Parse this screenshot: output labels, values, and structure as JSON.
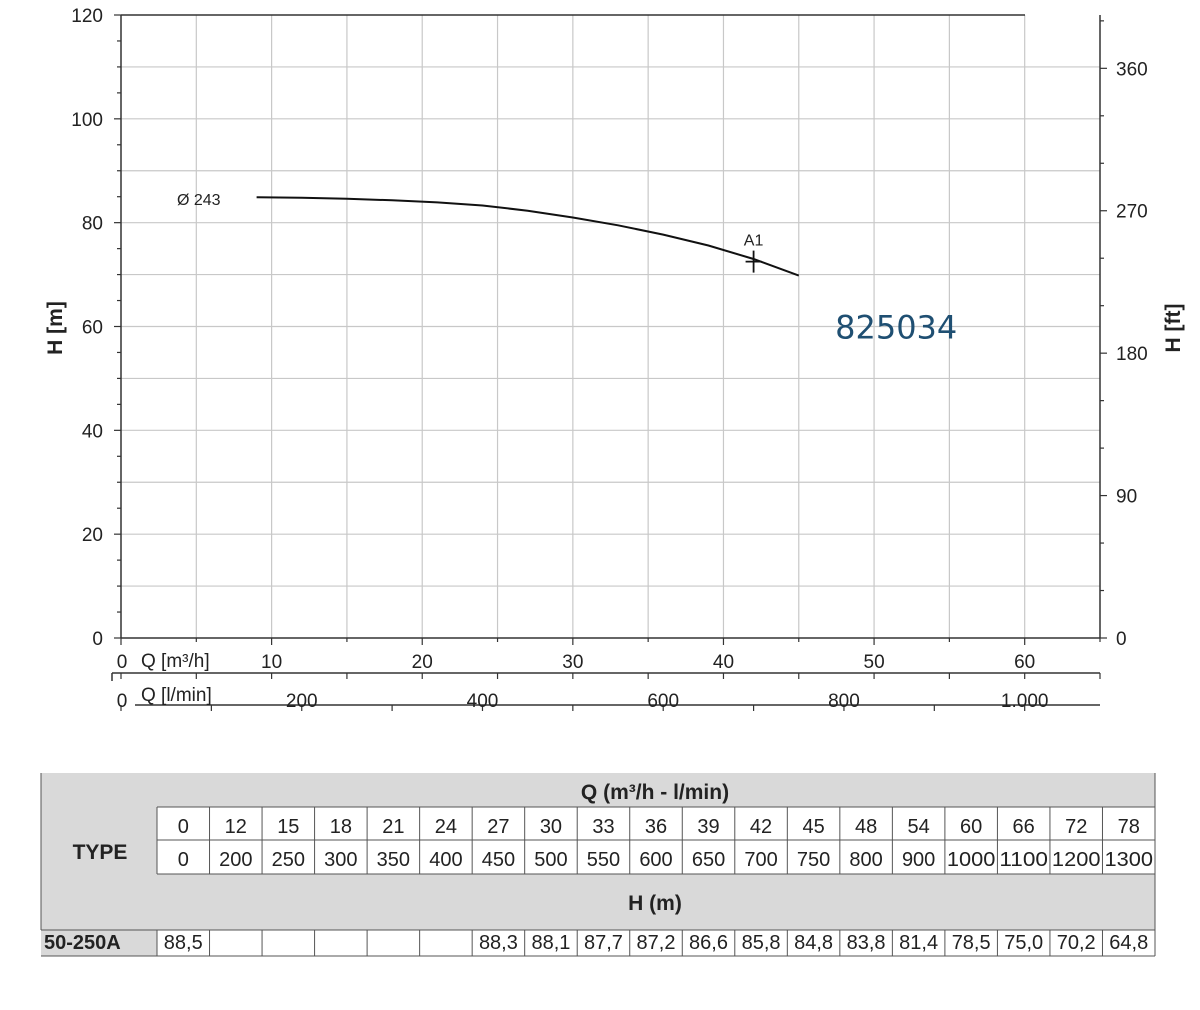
{
  "chart_data": {
    "type": "line",
    "ylabel_left": "H [m]",
    "ylabel_right": "H [ft]",
    "xlabel_m3h": "Q [m³/h]",
    "xlabel_lmin": "Q [l/min]",
    "x_axis_m3h": {
      "range": [
        0,
        65
      ],
      "ticks": [
        0,
        10,
        20,
        30,
        40,
        50,
        60
      ]
    },
    "x_axis_lmin": {
      "ticks": [
        {
          "value": 0,
          "label": "0"
        },
        {
          "value": 200,
          "label": "200"
        },
        {
          "value": 400,
          "label": "400"
        },
        {
          "value": 600,
          "label": "600"
        },
        {
          "value": 800,
          "label": "800"
        },
        {
          "value": 1000,
          "label": "1.000"
        }
      ]
    },
    "y_axis_m": {
      "range": [
        0,
        120
      ],
      "ticks": [
        0,
        20,
        40,
        60,
        80,
        100,
        120
      ]
    },
    "y_axis_ft": {
      "ticks": [
        0,
        90,
        180,
        270,
        360
      ]
    },
    "grid": true,
    "series": [
      {
        "name": "Ø 243",
        "x": [
          9,
          12,
          15,
          18,
          21,
          24,
          27,
          30,
          33,
          36,
          39,
          42,
          45
        ],
        "y": [
          84.9,
          84.8,
          84.6,
          84.3,
          83.9,
          83.3,
          82.3,
          81.0,
          79.5,
          77.7,
          75.6,
          73.0,
          69.8
        ]
      }
    ],
    "annotations": [
      {
        "label": "A1",
        "x": 42,
        "y": 72.5
      },
      {
        "label": "825034",
        "x": 52,
        "y": 60
      }
    ]
  },
  "table": {
    "header_label": "TYPE",
    "q_title": "Q (m³/h - l/min)",
    "h_title": "H (m)",
    "q_m3h": [
      "0",
      "12",
      "15",
      "18",
      "21",
      "24",
      "27",
      "30",
      "33",
      "36",
      "39",
      "42",
      "45",
      "48",
      "54",
      "60",
      "66",
      "72",
      "78"
    ],
    "q_lmin": [
      "0",
      "200",
      "250",
      "300",
      "350",
      "400",
      "450",
      "500",
      "550",
      "600",
      "650",
      "700",
      "750",
      "800",
      "900",
      "1000",
      "1100",
      "1200",
      "1300"
    ],
    "rows": [
      {
        "type": "50-250A",
        "h": [
          "88,5",
          "",
          "",
          "",
          "",
          "",
          "88,3",
          "88,1",
          "87,7",
          "87,2",
          "86,6",
          "85,8",
          "84,8",
          "83,8",
          "81,4",
          "78,5",
          "75,0",
          "70,2",
          "64,8"
        ]
      }
    ]
  }
}
